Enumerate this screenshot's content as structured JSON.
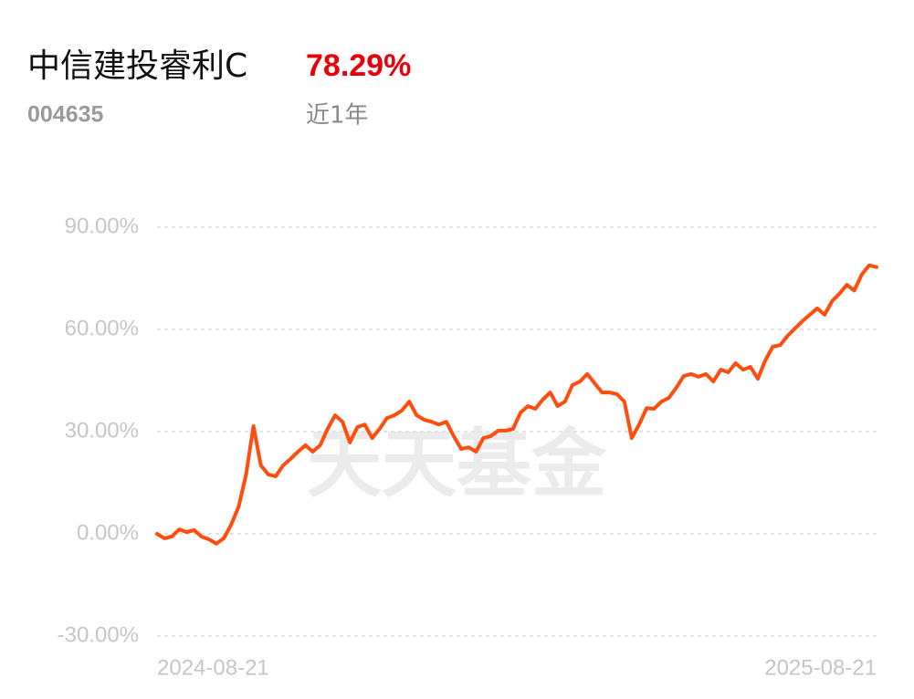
{
  "header": {
    "title": "中信建投睿利C",
    "return": "78.29%",
    "code": "004635",
    "period": "近1年"
  },
  "watermark": "天天基金",
  "chart_data": {
    "type": "line",
    "categories": [
      "2024-08-21",
      null,
      null,
      null,
      null,
      null,
      null,
      null,
      null,
      null,
      null,
      null,
      null,
      null,
      null,
      null,
      null,
      null,
      null,
      null,
      null,
      null,
      null,
      null,
      null,
      null,
      null,
      null,
      null,
      null,
      null,
      null,
      null,
      null,
      null,
      null,
      null,
      null,
      null,
      null,
      null,
      null,
      null,
      null,
      null,
      null,
      null,
      null,
      null,
      null,
      null,
      null,
      null,
      null,
      null,
      null,
      null,
      null,
      null,
      null,
      null,
      null,
      null,
      null,
      null,
      null,
      null,
      null,
      null,
      null,
      null,
      null,
      null,
      null,
      null,
      null,
      null,
      null,
      null,
      null,
      null,
      null,
      null,
      null,
      null,
      null,
      null,
      null,
      null,
      null,
      null,
      null,
      null,
      null,
      null,
      null,
      null,
      "2025-08-21"
    ],
    "values": [
      0,
      -1.3,
      -0.8,
      1.3,
      0.5,
      1.1,
      -0.8,
      -1.6,
      -2.9,
      -1.3,
      2.7,
      8,
      17.4,
      31.6,
      20.1,
      17.4,
      16.9,
      20.1,
      22,
      24.1,
      26,
      24.1,
      26,
      30.8,
      34.8,
      32.9,
      26.8,
      31.3,
      32.1,
      28.1,
      30.8,
      34,
      34.8,
      36.2,
      38.8,
      34.8,
      33.5,
      32.9,
      32.1,
      32.9,
      28.7,
      24.9,
      25.4,
      24.1,
      28.1,
      28.7,
      30.3,
      30.3,
      30.8,
      35.6,
      37.5,
      36.7,
      39.4,
      41.5,
      37.5,
      38.8,
      43.7,
      44.7,
      46.9,
      44.2,
      41.5,
      41.5,
      41.0,
      38.8,
      28.1,
      32.1,
      36.9,
      36.7,
      38.8,
      39.9,
      42.9,
      46.3,
      46.9,
      46.1,
      46.9,
      44.7,
      48.2,
      47.4,
      50.1,
      48.2,
      49.0,
      45.5,
      50.9,
      54.9,
      55.4,
      58.1,
      60.3,
      62.4,
      64.3,
      66.2,
      64.3,
      68.3,
      70.5,
      73.1,
      71.4,
      76.1,
      78.8,
      78.29
    ],
    "color": "#ff4d0d",
    "ylim": [
      -30,
      90
    ],
    "yticks": [
      {
        "value": 90,
        "label": "90.00%"
      },
      {
        "value": 60,
        "label": "60.00%"
      },
      {
        "value": 30,
        "label": "30.00%"
      },
      {
        "value": 0,
        "label": "0.00%"
      },
      {
        "value": -30,
        "label": "-30.00%"
      }
    ],
    "grid": true
  }
}
